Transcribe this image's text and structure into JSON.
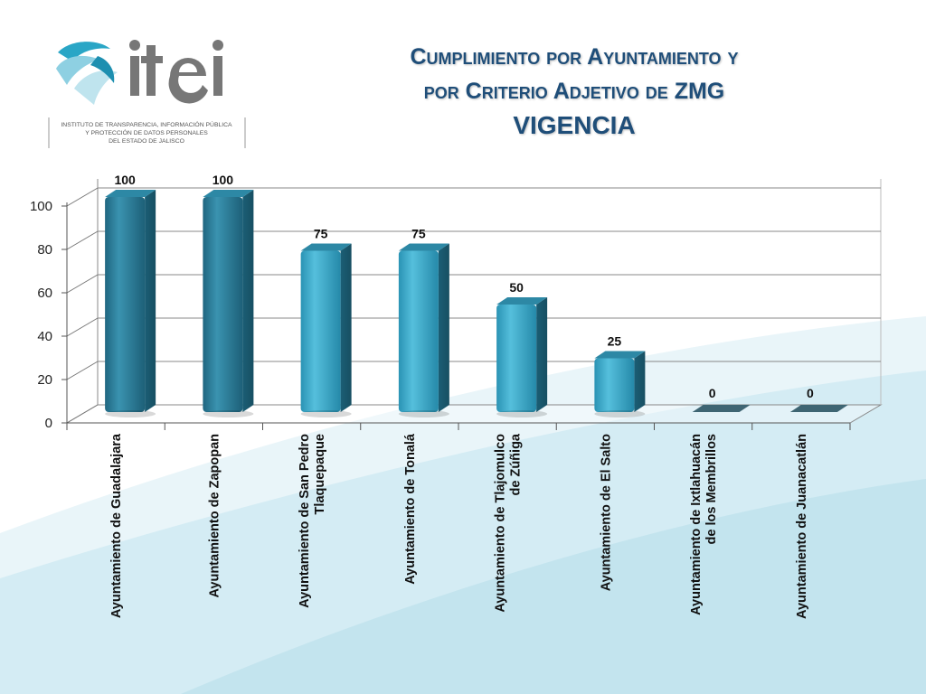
{
  "logo": {
    "brand": "itei",
    "org_lines": [
      "INSTITUTO DE TRANSPARENCIA, INFORMACIÓN PÚBLICA",
      "Y PROTECCIÓN DE DATOS PERSONALES",
      "DEL ESTADO DE JALISCO"
    ]
  },
  "title": {
    "line1": "Cumplimiento por Ayuntamiento y",
    "line2": "por Criterio Adjetivo de ZMG",
    "line3": "VIGENCIA"
  },
  "colors": {
    "bar_dark": "#2c7f9b",
    "bar_light": "#3aa8c8",
    "title": "#1f4e79",
    "background_wave": "#d4ecf4"
  },
  "chart_data": {
    "type": "bar",
    "title": "",
    "xlabel": "",
    "ylabel": "",
    "ylim": [
      0,
      100
    ],
    "yticks": [
      0,
      20,
      40,
      60,
      80,
      100
    ],
    "grid": true,
    "legend": "none",
    "categories": [
      [
        "Ayuntamiento de Guadalajara"
      ],
      [
        "Ayuntamiento de Zapopan"
      ],
      [
        "Ayuntamiento de San Pedro",
        "Tlaquepaque"
      ],
      [
        "Ayuntamiento de Tonalá"
      ],
      [
        "Ayuntamiento de Tlajomulco",
        "de Zúñiga"
      ],
      [
        "Ayuntamiento de El Salto"
      ],
      [
        "Ayuntamiento de Ixtlahuacán",
        "de los Membrillos"
      ],
      [
        "Ayuntamiento de Juanacatlán"
      ]
    ],
    "values": [
      100,
      100,
      75,
      75,
      50,
      25,
      0,
      0
    ],
    "value_labels": [
      "100",
      "100",
      "75",
      "75",
      "50",
      "25",
      "0",
      "0"
    ]
  }
}
